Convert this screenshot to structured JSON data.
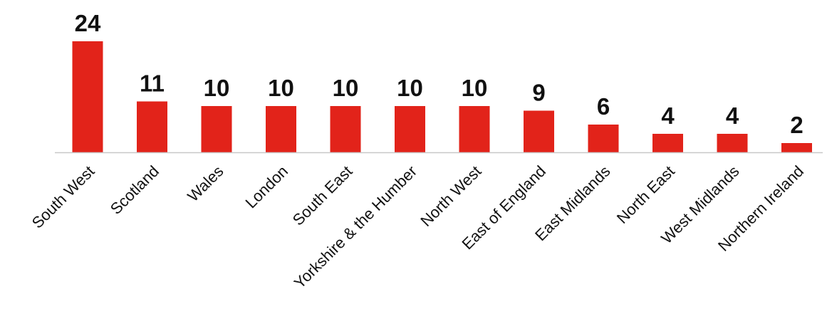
{
  "chart_data": {
    "type": "bar",
    "categories": [
      "South West",
      "Scotland",
      "Wales",
      "London",
      "South East",
      "Yorkshire & the Humber",
      "North West",
      "East of England",
      "East Midlands",
      "North East",
      "West Midlands",
      "Northern Ireland"
    ],
    "values": [
      24,
      11,
      10,
      10,
      10,
      10,
      10,
      9,
      6,
      4,
      4,
      2
    ],
    "title": "",
    "xlabel": "",
    "ylabel": "",
    "ylim": [
      0,
      24
    ],
    "grid": false,
    "legend": "none",
    "data_labels": true,
    "colors": {
      "bar": "#e2231a",
      "text": "#111111",
      "axis": "#c8c8c8"
    }
  }
}
